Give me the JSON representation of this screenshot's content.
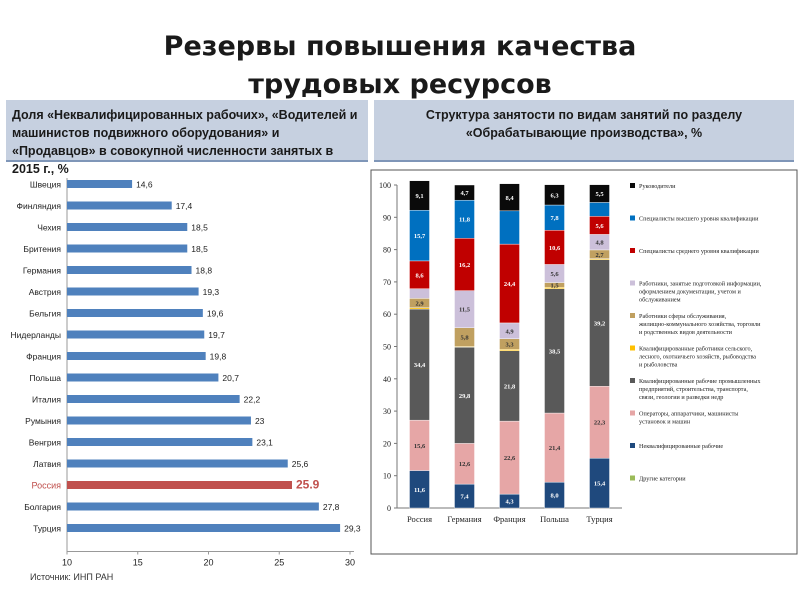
{
  "title_line1": "Резервы повышения качества",
  "title_line2": "трудовых ресурсов",
  "left_header": "Доля «Неквалифицированных рабочих», «Водителей и машинистов подвижного оборудования» и «Продавцов» в совокупной численности занятых в 2015 г., %",
  "right_header": "Структура занятости по видам занятий по разделу «Обрабатывающие производства», %",
  "source": "Источник: ИНП РАН",
  "chart_data": [
    {
      "type": "bar",
      "orientation": "horizontal",
      "categories": [
        "Швеция",
        "Финляндия",
        "Чехия",
        "Бритения",
        "Германия",
        "Австрия",
        "Бельгия",
        "Нидерланды",
        "Франция",
        "Польша",
        "Италия",
        "Румыния",
        "Венгрия",
        "Латвия",
        "Россия",
        "Болгария",
        "Турция"
      ],
      "values": [
        14.6,
        17.4,
        18.5,
        18.5,
        18.8,
        19.3,
        19.6,
        19.7,
        19.8,
        20.7,
        22.2,
        23,
        23.1,
        25.6,
        25.9,
        27.8,
        29.3
      ],
      "value_labels": [
        "14,6",
        "17,4",
        "18,5",
        "18,5",
        "18,8",
        "19,3",
        "19,6",
        "19,7",
        "19,8",
        "20,7",
        "22,2",
        "23",
        "23,1",
        "25,6",
        "25.9",
        "27,8",
        "29,3"
      ],
      "xlim": [
        10,
        30
      ],
      "xticks": [
        "10",
        "15",
        "20",
        "25",
        "30"
      ],
      "highlight": "Россия",
      "colors": {
        "bar": "#4f81bd",
        "highlight": "#c0504d"
      }
    },
    {
      "type": "bar",
      "stacked": true,
      "categories": [
        "Россия",
        "Германия",
        "Франция",
        "Польша",
        "Турция"
      ],
      "ylim": [
        0,
        100
      ],
      "yticks": [
        "0",
        "10",
        "20",
        "30",
        "40",
        "50",
        "60",
        "70",
        "80",
        "90",
        "100"
      ],
      "series": [
        {
          "name": "Другие категории",
          "color": "#9bbb59",
          "values": [
            0.0,
            0.0,
            0.0,
            0.0,
            0.0
          ],
          "labels": [
            "",
            "",
            "",
            "",
            ""
          ]
        },
        {
          "name": "Неквалифицированные рабочие",
          "color": "#1f497d",
          "values": [
            11.6,
            7.4,
            4.3,
            8.0,
            15.4
          ],
          "labels": [
            "11,6",
            "7,4",
            "4,3",
            "8,0",
            "15,4"
          ]
        },
        {
          "name": "Операторы, аппаратчики, машинисты установок и машин",
          "color": "#e6a6a6",
          "values": [
            15.6,
            12.6,
            22.6,
            21.4,
            22.3
          ],
          "labels": [
            "15,6",
            "12,6",
            "22,6",
            "21,4",
            "22,3"
          ]
        },
        {
          "name": "Квалифицированные рабочие промышленных предприятий, строительства, транспорта, связи, геологии и разведки недр",
          "color": "#595959",
          "values": [
            34.4,
            29.8,
            21.8,
            38.5,
            39.2
          ],
          "labels": [
            "34,4",
            "29,8",
            "21,8",
            "38,5",
            "39,2"
          ]
        },
        {
          "name": "Квалифицированные работники сельского, лесного, охотничьего хозяйств, рыбоводства и рыболовства",
          "color": "#ffc000",
          "values": [
            0.4,
            0.2,
            0.4,
            0.4,
            0.3
          ],
          "labels": [
            "",
            "",
            "",
            "",
            ""
          ]
        },
        {
          "name": "Работники сферы обслуживания, жилищно-коммунального хозяйства, торговли и родственных видов деятельности",
          "color": "#c0a060",
          "values": [
            2.9,
            5.8,
            3.3,
            1.5,
            2.7
          ],
          "labels": [
            "2,9",
            "5,8",
            "3,3",
            "1,5",
            "2,7"
          ]
        },
        {
          "name": "Работники, занятые подготовкой информации, оформлением документации, учетом и обслуживанием",
          "color": "#ccc0da",
          "values": [
            3.0,
            11.5,
            4.9,
            5.6,
            4.8
          ],
          "labels": [
            "",
            "11,5",
            "4,9",
            "5,6",
            "4,8"
          ]
        },
        {
          "name": "Специалисты среднего уровня квалификации",
          "color": "#c00000",
          "values": [
            8.6,
            16.2,
            24.4,
            10.6,
            5.6
          ],
          "labels": [
            "8,6",
            "16,2",
            "24,4",
            "10,6",
            "5,6"
          ]
        },
        {
          "name": "Специалисты высшего уровня квалификации",
          "color": "#0070c0",
          "values": [
            15.7,
            11.8,
            10.3,
            7.8,
            4.3
          ],
          "labels": [
            "15,7",
            "11,8",
            "",
            "7,8",
            ""
          ]
        },
        {
          "name": "Руководители",
          "color": "#0a0a0a",
          "values": [
            9.1,
            4.7,
            8.4,
            6.3,
            5.5
          ],
          "labels": [
            "9,1",
            "4,7",
            "8,4",
            "6,3",
            "5,5"
          ]
        }
      ],
      "legend_order": [
        "Руководители",
        "Специалисты высшего уровня квалификации",
        "Специалисты среднего уровня квалификации",
        "Работники, занятые подготовкой информации, оформлением документации, учетом и обслуживанием",
        "Работники сферы обслуживания, жилищно-коммунального хозяйства, торговли и родственных видов деятельности",
        "Квалифицированные работники сельского, лесного, охотничьего хозяйств, рыбоводства и рыболовства",
        "Квалифицированные рабочие промышленных предприятий, строительства, транспорта, связи, геологии и разведки недр",
        "Операторы, аппаратчики, машинисты установок и машин",
        "Неквалифицированные рабочие",
        "Другие категории"
      ],
      "legend_position": "right"
    }
  ]
}
